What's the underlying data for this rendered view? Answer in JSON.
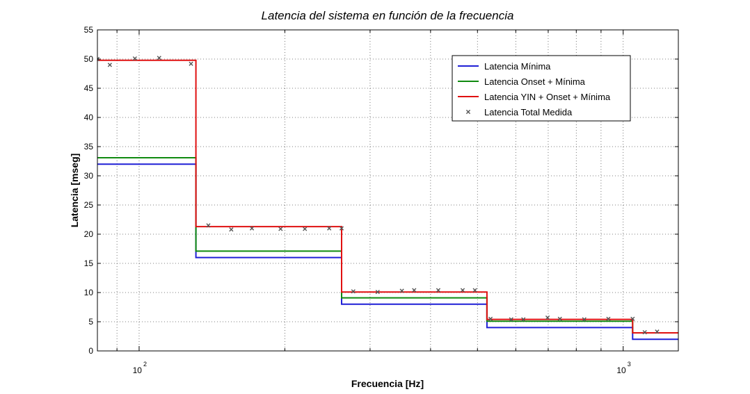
{
  "chart_data": {
    "type": "line",
    "title": "Latencia del sistema en función de la frecuencia",
    "xlabel": "Frecuencia [Hz]",
    "ylabel": "Latencia [mseg]",
    "xscale": "log",
    "xlim": [
      82,
      1300
    ],
    "ylim": [
      0,
      55
    ],
    "yticks": [
      0,
      5,
      10,
      15,
      20,
      25,
      30,
      35,
      40,
      45,
      50,
      55
    ],
    "xticks_major": [
      {
        "value": 100,
        "base": "10",
        "exp": "2"
      },
      {
        "value": 1000,
        "base": "10",
        "exp": "3"
      }
    ],
    "grid": true,
    "legend_position": "top-right",
    "series": [
      {
        "name": "Latencia Mínima",
        "color": "#1f1fd6",
        "kind": "step",
        "x": [
          82,
          131,
          131,
          262,
          262,
          523,
          523,
          1046,
          1046,
          1300
        ],
        "y": [
          32,
          32,
          16,
          16,
          8,
          8,
          4,
          4,
          2,
          2
        ]
      },
      {
        "name": "Latencia Onset + Mínima",
        "color": "#0f8a0f",
        "kind": "step",
        "x": [
          82,
          131,
          131,
          262,
          262,
          523,
          523,
          1046,
          1046,
          1300
        ],
        "y": [
          33.1,
          33.1,
          17.1,
          17.1,
          9.1,
          9.1,
          5.1,
          5.1,
          3.1,
          3.1
        ]
      },
      {
        "name": "Latencia YIN + Onset + Mínima",
        "color": "#e01010",
        "kind": "step",
        "x": [
          82,
          131,
          131,
          262,
          262,
          523,
          523,
          1046,
          1046,
          1300
        ],
        "y": [
          49.8,
          49.8,
          21.3,
          21.3,
          10.1,
          10.1,
          5.4,
          5.4,
          3.1,
          3.1
        ]
      },
      {
        "name": "Latencia Total Medida",
        "color": "#555555",
        "kind": "scatter",
        "marker": "x",
        "x": [
          82,
          87,
          98,
          110,
          128,
          139,
          155,
          171,
          196,
          220,
          247,
          262,
          277,
          311,
          349,
          370,
          415,
          466,
          494,
          532,
          587,
          622,
          698,
          740,
          831,
          932,
          1046,
          1108,
          1175
        ],
        "y": [
          50,
          49,
          50.1,
          50.2,
          49.2,
          21.5,
          20.8,
          21,
          20.9,
          20.9,
          21,
          21,
          10.2,
          10.1,
          10.3,
          10.4,
          10.4,
          10.4,
          10.4,
          5.5,
          5.4,
          5.4,
          5.7,
          5.5,
          5.4,
          5.5,
          5.5,
          3.2,
          3.3
        ]
      }
    ]
  }
}
